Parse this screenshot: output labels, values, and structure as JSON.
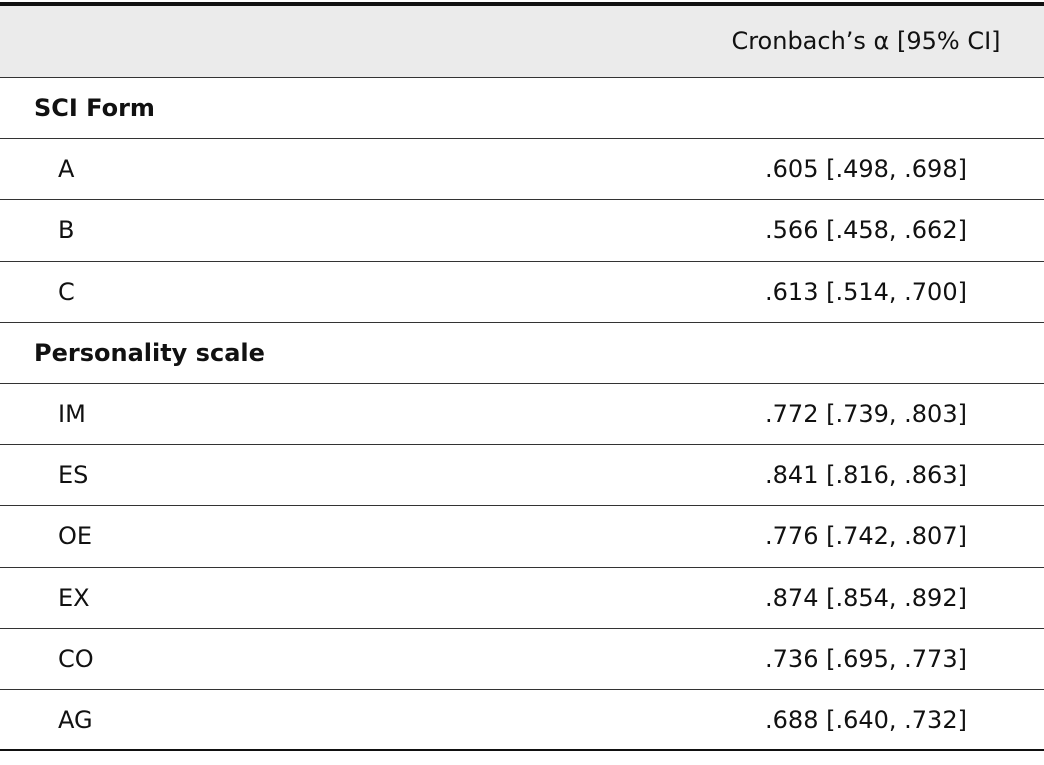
{
  "table": {
    "columns": [
      "Cronbach’s α [95% CI]"
    ],
    "groups": [
      {
        "label": "SCI Form",
        "rows": [
          [
            "A",
            ".605 [.498, .698]"
          ],
          [
            "B",
            ".566 [.458, .662]"
          ],
          [
            "C",
            ".613 [.514, .700]"
          ]
        ]
      },
      {
        "label": "Personality scale",
        "rows": [
          [
            "IM",
            ".772 [.739, .803]"
          ],
          [
            "ES",
            ".841 [.816, .863]"
          ],
          [
            "OE",
            ".776 [.742, .807]"
          ],
          [
            "EX",
            ".874 [.854, .892]"
          ],
          [
            "CO",
            ".736 [.695, .773]"
          ],
          [
            "AG",
            ".688 [.640, .732]"
          ]
        ]
      }
    ]
  }
}
